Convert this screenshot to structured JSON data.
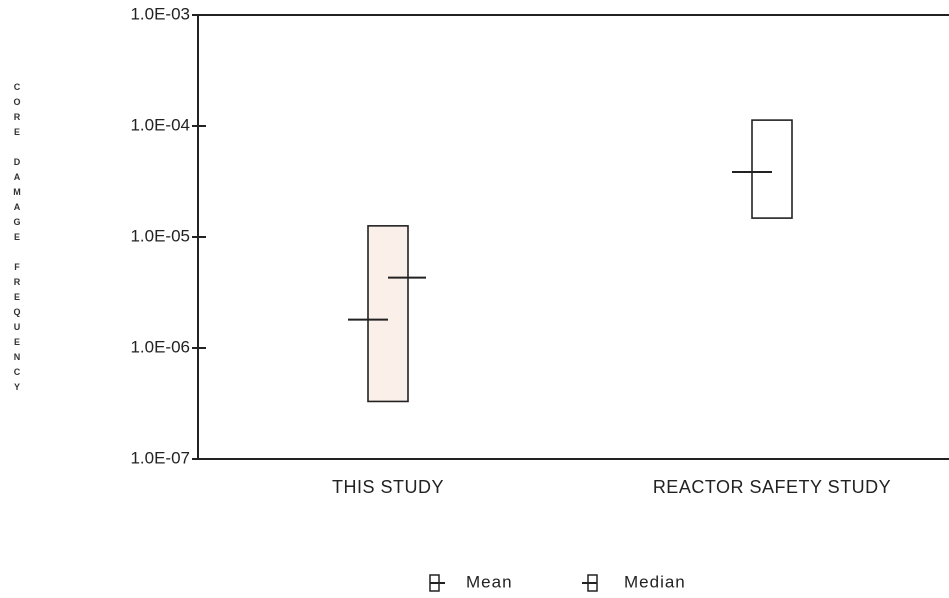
{
  "chart_data": {
    "type": "range",
    "y_label": "CORE DAMAGE FREQUENCY",
    "categories": [
      "THIS STUDY",
      "REACTOR SAFETY STUDY"
    ],
    "low": [
      3.3e-07,
      1.48e-05
    ],
    "high": [
      1.26e-05,
      0.000113
    ],
    "colors": [
      "#fbefea",
      "#ffffff"
    ],
    "series": [
      {
        "name": "Mean",
        "values": [
          4.3e-06,
          null
        ]
      },
      {
        "name": "Median",
        "values": [
          1.8e-06,
          3.85e-05
        ]
      }
    ],
    "log_scale": true,
    "ylim": [
      1e-07,
      0.001
    ],
    "yticks": [
      {
        "value": 1e-07,
        "label": "1.0E-07"
      },
      {
        "value": 1e-06,
        "label": "1.0E-06"
      },
      {
        "value": 1e-05,
        "label": "1.0E-05"
      },
      {
        "value": 0.0001,
        "label": "1.0E-04"
      },
      {
        "value": 0.001,
        "label": "1.0E-03"
      }
    ]
  }
}
